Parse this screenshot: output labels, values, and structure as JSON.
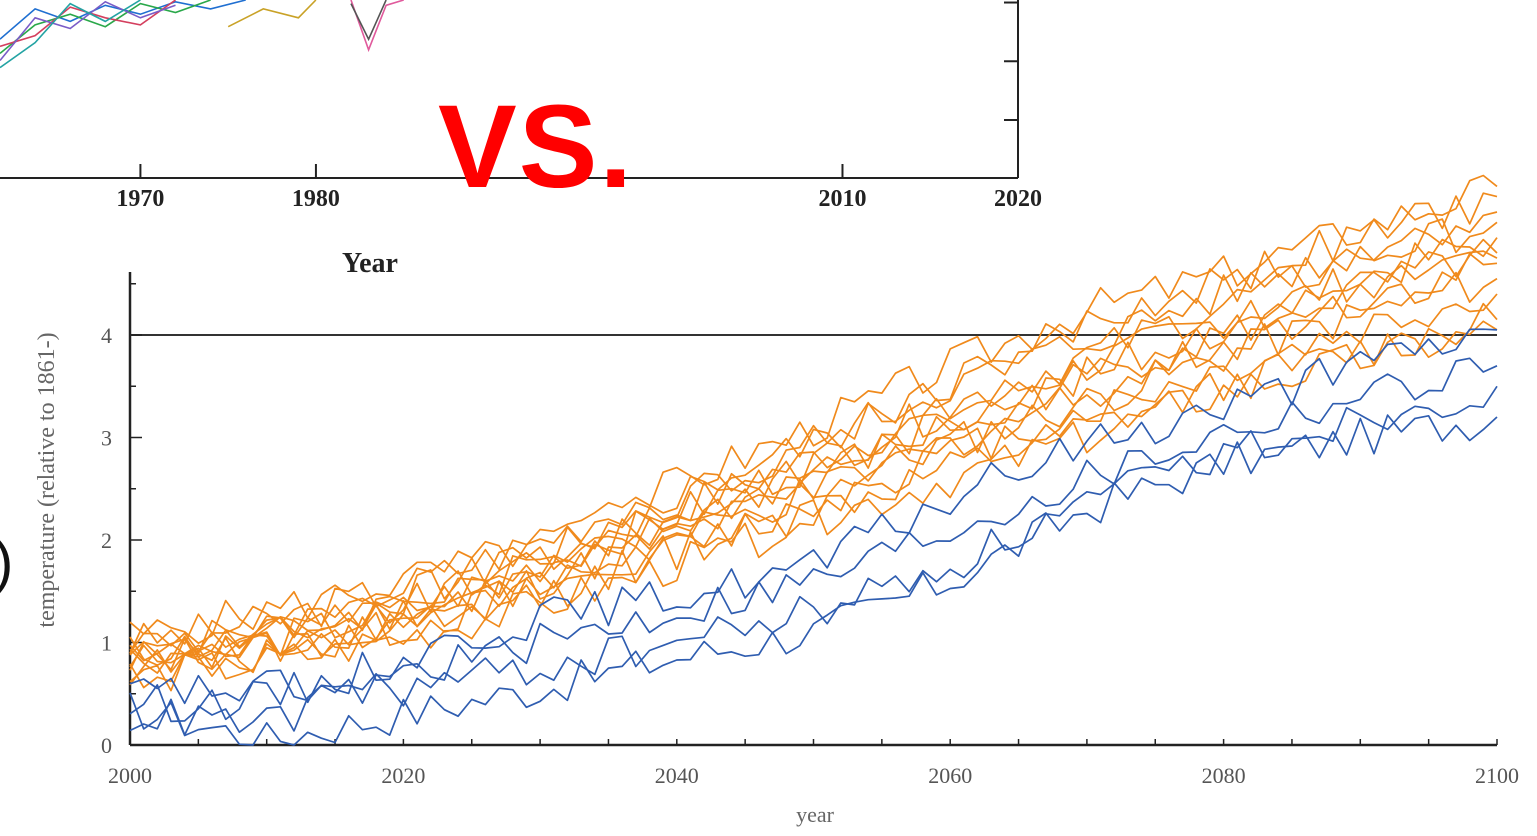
{
  "overlay": {
    "label": "VS.",
    "color": "#ff0000"
  },
  "chart_data": [
    {
      "type": "line",
      "xlabel": "Year",
      "ylabel": "",
      "xticks": [
        "1970",
        "1980",
        "2010",
        "2020"
      ],
      "x_range": [
        1962,
        2020
      ],
      "y_range": [
        0,
        1
      ],
      "series_colors": [
        "#1f6fd1",
        "#2aa84a",
        "#d43f5e",
        "#7a5cc7",
        "#23a3a3",
        "#c9a227",
        "#e05a9c",
        "#555555"
      ],
      "series": [
        {
          "values": [
            [
              1962,
              0.78
            ],
            [
              1964,
              0.95
            ],
            [
              1966,
              0.88
            ],
            [
              1968,
              0.97
            ],
            [
              1970,
              0.92
            ],
            [
              1972,
              0.99
            ],
            [
              1974,
              0.95
            ],
            [
              1976,
              1.0
            ]
          ]
        },
        {
          "values": [
            [
              1962,
              0.7
            ],
            [
              1964,
              0.86
            ],
            [
              1966,
              0.92
            ],
            [
              1968,
              0.85
            ],
            [
              1970,
              0.98
            ],
            [
              1972,
              0.93
            ],
            [
              1974,
              1.0
            ]
          ]
        },
        {
          "values": [
            [
              1962,
              0.74
            ],
            [
              1964,
              0.8
            ],
            [
              1966,
              0.96
            ],
            [
              1968,
              0.9
            ],
            [
              1970,
              0.86
            ],
            [
              1972,
              1.0
            ]
          ]
        },
        {
          "values": [
            [
              1962,
              0.66
            ],
            [
              1964,
              0.9
            ],
            [
              1966,
              0.84
            ],
            [
              1968,
              0.99
            ],
            [
              1970,
              0.9
            ],
            [
              1972,
              0.97
            ]
          ]
        },
        {
          "values": [
            [
              1962,
              0.62
            ],
            [
              1964,
              0.76
            ],
            [
              1966,
              0.98
            ],
            [
              1968,
              0.88
            ],
            [
              1970,
              1.0
            ]
          ]
        },
        {
          "values": [
            [
              1975,
              0.85
            ],
            [
              1977,
              0.95
            ],
            [
              1979,
              0.9
            ],
            [
              1980,
              1.0
            ]
          ]
        },
        {
          "values": [
            [
              1982,
              1.0
            ],
            [
              1983,
              0.72
            ],
            [
              1984,
              0.97
            ],
            [
              1985,
              1.0
            ]
          ]
        },
        {
          "values": [
            [
              1982,
              0.98
            ],
            [
              1983,
              0.78
            ],
            [
              1984,
              1.0
            ]
          ]
        }
      ]
    },
    {
      "type": "line",
      "xlabel": "year",
      "ylabel": "temperature (relative to 1861-)",
      "xticks": [
        "2000",
        "2020",
        "2040",
        "2060",
        "2080",
        "2100"
      ],
      "yticks": [
        "0",
        "1",
        "2",
        "3",
        "4"
      ],
      "x_range": [
        2000,
        2100
      ],
      "y_range": [
        0,
        4.7
      ],
      "reference_line": 4,
      "grid": false,
      "series_colors": {
        "orange": "#f08a1c",
        "blue": "#2f5db0"
      },
      "series": [
        {
          "color": "orange",
          "values": [
            [
              2000,
              1.0
            ],
            [
              2010,
              1.2
            ],
            [
              2020,
              1.55
            ],
            [
              2030,
              2.0
            ],
            [
              2040,
              2.55
            ],
            [
              2050,
              3.1
            ],
            [
              2060,
              3.7
            ],
            [
              2070,
              4.25
            ],
            [
              2080,
              4.6
            ],
            [
              2090,
              5.05
            ],
            [
              2100,
              5.45
            ]
          ]
        },
        {
          "color": "orange",
          "values": [
            [
              2000,
              0.9
            ],
            [
              2010,
              1.05
            ],
            [
              2020,
              1.4
            ],
            [
              2030,
              1.85
            ],
            [
              2040,
              2.4
            ],
            [
              2050,
              2.95
            ],
            [
              2060,
              3.55
            ],
            [
              2070,
              4.1
            ],
            [
              2080,
              4.55
            ],
            [
              2090,
              4.95
            ],
            [
              2100,
              5.35
            ]
          ]
        },
        {
          "color": "orange",
          "values": [
            [
              2000,
              1.05
            ],
            [
              2010,
              1.3
            ],
            [
              2020,
              1.6
            ],
            [
              2030,
              1.95
            ],
            [
              2040,
              2.45
            ],
            [
              2050,
              2.95
            ],
            [
              2060,
              3.5
            ],
            [
              2070,
              3.95
            ],
            [
              2080,
              4.4
            ],
            [
              2090,
              4.85
            ],
            [
              2100,
              5.2
            ]
          ]
        },
        {
          "color": "orange",
          "values": [
            [
              2000,
              0.85
            ],
            [
              2010,
              1.0
            ],
            [
              2020,
              1.3
            ],
            [
              2030,
              1.75
            ],
            [
              2040,
              2.25
            ],
            [
              2050,
              2.75
            ],
            [
              2060,
              3.3
            ],
            [
              2070,
              3.8
            ],
            [
              2080,
              4.3
            ],
            [
              2090,
              4.75
            ],
            [
              2100,
              5.1
            ]
          ]
        },
        {
          "color": "orange",
          "values": [
            [
              2000,
              0.95
            ],
            [
              2010,
              1.15
            ],
            [
              2020,
              1.45
            ],
            [
              2030,
              1.85
            ],
            [
              2040,
              2.3
            ],
            [
              2050,
              2.8
            ],
            [
              2060,
              3.25
            ],
            [
              2070,
              3.7
            ],
            [
              2080,
              4.15
            ],
            [
              2090,
              4.55
            ],
            [
              2100,
              4.95
            ]
          ]
        },
        {
          "color": "orange",
          "values": [
            [
              2000,
              0.8
            ],
            [
              2010,
              0.95
            ],
            [
              2020,
              1.25
            ],
            [
              2030,
              1.65
            ],
            [
              2040,
              2.15
            ],
            [
              2050,
              2.65
            ],
            [
              2060,
              3.1
            ],
            [
              2070,
              3.6
            ],
            [
              2080,
              4.0
            ],
            [
              2090,
              4.45
            ],
            [
              2100,
              4.8
            ]
          ]
        },
        {
          "color": "orange",
          "values": [
            [
              2000,
              1.0
            ],
            [
              2010,
              1.1
            ],
            [
              2020,
              1.35
            ],
            [
              2030,
              1.75
            ],
            [
              2040,
              2.2
            ],
            [
              2050,
              2.7
            ],
            [
              2060,
              3.15
            ],
            [
              2070,
              3.6
            ],
            [
              2080,
              4.1
            ],
            [
              2090,
              4.5
            ],
            [
              2100,
              4.75
            ]
          ]
        },
        {
          "color": "orange",
          "values": [
            [
              2000,
              0.75
            ],
            [
              2010,
              0.9
            ],
            [
              2020,
              1.2
            ],
            [
              2030,
              1.55
            ],
            [
              2040,
              2.0
            ],
            [
              2050,
              2.45
            ],
            [
              2060,
              2.95
            ],
            [
              2070,
              3.45
            ],
            [
              2080,
              3.9
            ],
            [
              2090,
              4.35
            ],
            [
              2100,
              4.7
            ]
          ]
        },
        {
          "color": "orange",
          "values": [
            [
              2000,
              0.9
            ],
            [
              2010,
              1.05
            ],
            [
              2020,
              1.3
            ],
            [
              2030,
              1.6
            ],
            [
              2040,
              2.05
            ],
            [
              2050,
              2.5
            ],
            [
              2060,
              2.95
            ],
            [
              2070,
              3.35
            ],
            [
              2080,
              3.8
            ],
            [
              2090,
              4.2
            ],
            [
              2100,
              4.55
            ]
          ]
        },
        {
          "color": "orange",
          "values": [
            [
              2000,
              0.7
            ],
            [
              2010,
              0.85
            ],
            [
              2020,
              1.1
            ],
            [
              2030,
              1.45
            ],
            [
              2040,
              1.9
            ],
            [
              2050,
              2.35
            ],
            [
              2060,
              2.85
            ],
            [
              2070,
              3.25
            ],
            [
              2080,
              3.65
            ],
            [
              2090,
              4.05
            ],
            [
              2100,
              4.4
            ]
          ]
        },
        {
          "color": "orange",
          "values": [
            [
              2000,
              0.85
            ],
            [
              2010,
              0.95
            ],
            [
              2020,
              1.15
            ],
            [
              2030,
              1.5
            ],
            [
              2040,
              1.9
            ],
            [
              2050,
              2.3
            ],
            [
              2060,
              2.7
            ],
            [
              2070,
              3.1
            ],
            [
              2080,
              3.5
            ],
            [
              2090,
              3.85
            ],
            [
              2100,
              4.15
            ]
          ]
        },
        {
          "color": "orange",
          "values": [
            [
              2000,
              0.65
            ],
            [
              2010,
              0.8
            ],
            [
              2020,
              1.05
            ],
            [
              2030,
              1.35
            ],
            [
              2040,
              1.75
            ],
            [
              2050,
              2.2
            ],
            [
              2060,
              2.6
            ],
            [
              2070,
              3.0
            ],
            [
              2080,
              3.45
            ],
            [
              2090,
              3.75
            ],
            [
              2100,
              4.05
            ]
          ]
        },
        {
          "color": "blue",
          "values": [
            [
              2000,
              0.4
            ],
            [
              2010,
              0.45
            ],
            [
              2020,
              0.85
            ],
            [
              2030,
              1.25
            ],
            [
              2040,
              1.45
            ],
            [
              2050,
              1.75
            ],
            [
              2060,
              2.4
            ],
            [
              2070,
              2.95
            ],
            [
              2080,
              3.3
            ],
            [
              2090,
              3.7
            ],
            [
              2100,
              4.05
            ]
          ]
        },
        {
          "color": "blue",
          "values": [
            [
              2000,
              0.3
            ],
            [
              2010,
              0.2
            ],
            [
              2020,
              0.7
            ],
            [
              2030,
              1.0
            ],
            [
              2040,
              1.3
            ],
            [
              2050,
              1.6
            ],
            [
              2060,
              2.1
            ],
            [
              2070,
              2.6
            ],
            [
              2080,
              3.05
            ],
            [
              2090,
              3.4
            ],
            [
              2100,
              3.7
            ]
          ]
        },
        {
          "color": "blue",
          "values": [
            [
              2000,
              0.35
            ],
            [
              2010,
              0.05
            ],
            [
              2020,
              0.3
            ],
            [
              2030,
              0.55
            ],
            [
              2040,
              0.85
            ],
            [
              2050,
              1.1
            ],
            [
              2060,
              1.6
            ],
            [
              2070,
              2.3
            ],
            [
              2080,
              2.75
            ],
            [
              2090,
              3.0
            ],
            [
              2100,
              3.2
            ]
          ]
        },
        {
          "color": "blue",
          "values": [
            [
              2000,
              0.5
            ],
            [
              2010,
              0.55
            ],
            [
              2020,
              0.55
            ],
            [
              2030,
              0.75
            ],
            [
              2040,
              1.0
            ],
            [
              2050,
              1.3
            ],
            [
              2060,
              1.75
            ],
            [
              2070,
              2.35
            ],
            [
              2080,
              2.85
            ],
            [
              2090,
              3.2
            ],
            [
              2100,
              3.5
            ]
          ]
        }
      ]
    }
  ]
}
